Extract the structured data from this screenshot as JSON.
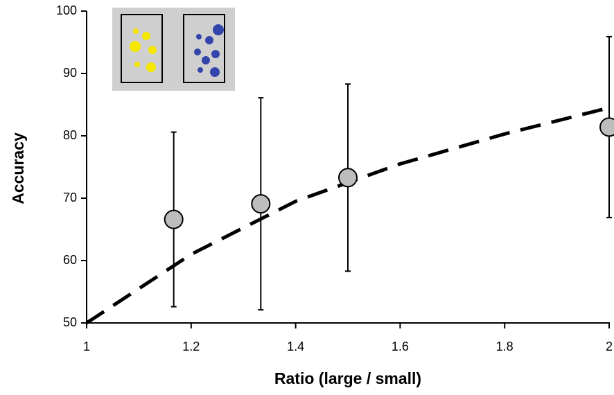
{
  "chart_data": {
    "type": "scatter",
    "x_label": "Ratio (large / small)",
    "y_label": "Accuracy",
    "x": [
      1.1667,
      1.3333,
      1.5,
      2
    ],
    "values": [
      66.6,
      69.1,
      73.3,
      81.4
    ],
    "errors": [
      14,
      17,
      15,
      14.5
    ],
    "color": "#bdbdbd",
    "fit": {
      "x": [
        1,
        1.2,
        1.4,
        1.6,
        1.8,
        2
      ],
      "values": [
        50,
        61,
        69.5,
        75.5,
        80.3,
        84.5
      ],
      "color": "#000000"
    },
    "xlim": [
      1,
      2
    ],
    "xticks": [
      1,
      1.2,
      1.4,
      1.6,
      1.8,
      2
    ],
    "ylim": [
      50,
      100
    ],
    "yticks": [
      50,
      60,
      70,
      80,
      90,
      100
    ]
  }
}
